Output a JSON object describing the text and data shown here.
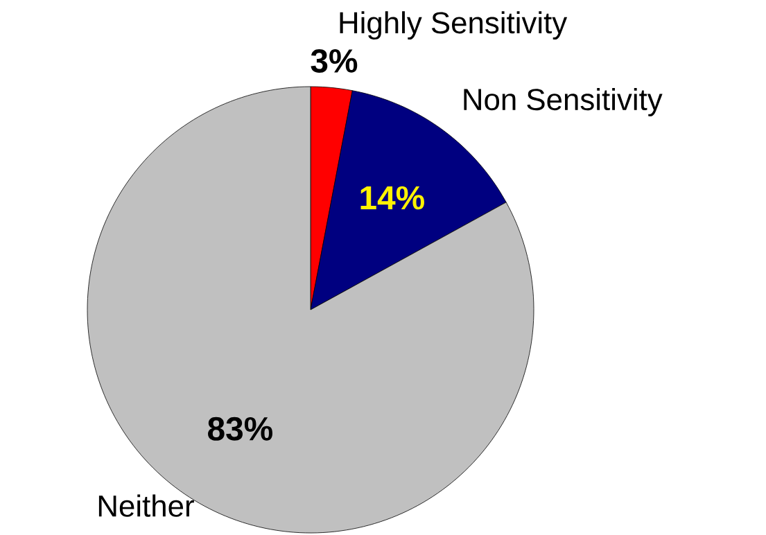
{
  "chart_data": {
    "type": "pie",
    "categories": [
      "Highly Sensitivity",
      "Non Sensitivity",
      "Neither"
    ],
    "values": [
      3,
      14,
      83
    ],
    "colors": [
      "#ff0000",
      "#000080",
      "#c0c0c0"
    ],
    "value_labels": [
      "3%",
      "14%",
      "83%"
    ]
  }
}
